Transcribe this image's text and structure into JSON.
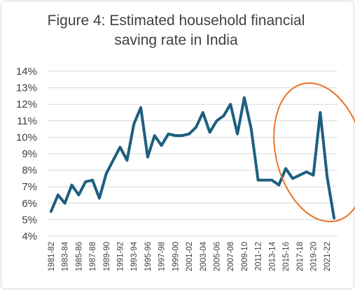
{
  "chart_data": {
    "type": "line",
    "title_line1": "Figure 4: Estimated household financial",
    "title_line2": "saving rate in India",
    "xlabel": "",
    "ylabel": "",
    "ylim": [
      4,
      14
    ],
    "y_ticks": [
      "4%",
      "5%",
      "6%",
      "7%",
      "8%",
      "9%",
      "10%",
      "11%",
      "12%",
      "13%",
      "14%"
    ],
    "grid": "horizontal",
    "legend": "none",
    "x_tick_labels": [
      "1981-82",
      "1983-84",
      "1985-86",
      "1987-88",
      "1989-90",
      "1991-92",
      "1993-94",
      "1995-96",
      "1997-98",
      "1999-00",
      "2001-02",
      "2003-04",
      "2005-06",
      "2007-08",
      "2009-10",
      "2011-12",
      "2013-14",
      "2015-16",
      "2017-18",
      "2019-20",
      "2021-22"
    ],
    "categories": [
      "1981-82",
      "1982-83",
      "1983-84",
      "1984-85",
      "1985-86",
      "1986-87",
      "1987-88",
      "1988-89",
      "1989-90",
      "1990-91",
      "1991-92",
      "1992-93",
      "1993-94",
      "1994-95",
      "1995-96",
      "1996-97",
      "1997-98",
      "1998-99",
      "1999-00",
      "2000-01",
      "2001-02",
      "2002-03",
      "2003-04",
      "2004-05",
      "2005-06",
      "2006-07",
      "2007-08",
      "2008-09",
      "2009-10",
      "2010-11",
      "2011-12",
      "2012-13",
      "2013-14",
      "2014-15",
      "2015-16",
      "2016-17",
      "2017-18",
      "2018-19",
      "2019-20",
      "2020-21",
      "2021-22",
      "2022-23"
    ],
    "values": [
      5.5,
      6.5,
      6.0,
      7.1,
      6.5,
      7.3,
      7.4,
      6.3,
      7.8,
      8.6,
      9.4,
      8.6,
      10.8,
      11.8,
      8.8,
      10.1,
      9.5,
      10.2,
      10.1,
      10.1,
      10.2,
      10.6,
      11.5,
      10.3,
      11.0,
      11.3,
      12.0,
      10.2,
      12.4,
      10.5,
      7.4,
      7.4,
      7.4,
      7.1,
      8.1,
      7.5,
      7.7,
      7.9,
      7.7,
      11.5,
      7.6,
      5.1
    ],
    "colors": {
      "line": "#1d5f7f",
      "grid": "#d9d9d9",
      "ellipse": "#e8742a",
      "text": "#404040"
    },
    "annotation": {
      "type": "ellipse",
      "from_category": "2015-16",
      "to_category": "2022-23"
    }
  }
}
